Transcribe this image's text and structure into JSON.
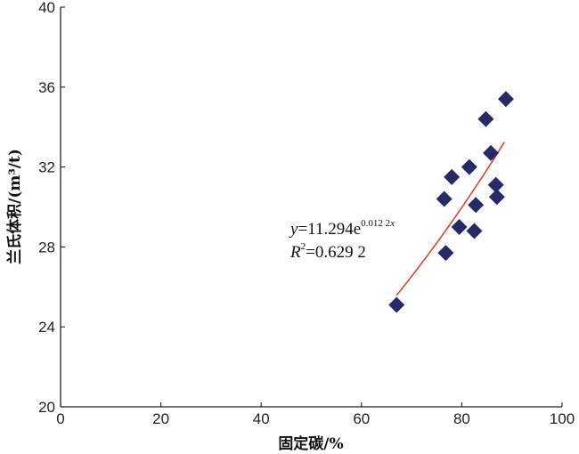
{
  "chart_data": {
    "type": "scatter",
    "xlabel": "固定碳/%",
    "ylabel": "兰氏体积/(m³/t)",
    "xlim": [
      0,
      100
    ],
    "ylim": [
      20,
      40
    ],
    "xticks": [
      0,
      20,
      40,
      60,
      80,
      100
    ],
    "yticks": [
      20,
      24,
      28,
      32,
      36,
      40
    ],
    "grid": false,
    "marker": "diamond",
    "marker_color": "#262a66",
    "points": [
      {
        "x": 67.0,
        "y": 25.1
      },
      {
        "x": 76.5,
        "y": 30.4
      },
      {
        "x": 76.8,
        "y": 27.7
      },
      {
        "x": 78.0,
        "y": 31.5
      },
      {
        "x": 79.5,
        "y": 29.0
      },
      {
        "x": 81.5,
        "y": 32.0
      },
      {
        "x": 82.5,
        "y": 28.8
      },
      {
        "x": 82.8,
        "y": 30.1
      },
      {
        "x": 84.8,
        "y": 34.4
      },
      {
        "x": 85.8,
        "y": 32.7
      },
      {
        "x": 86.8,
        "y": 31.1
      },
      {
        "x": 87.0,
        "y": 30.5
      },
      {
        "x": 88.8,
        "y": 35.4
      }
    ],
    "fit": {
      "type": "exponential",
      "a": 11.294,
      "b": 0.0122,
      "x_range": [
        67,
        88.5
      ],
      "color": "#e0442a",
      "equation": {
        "y_var": "y",
        "equals_base": "=11.294e",
        "exponent": "0.012 2",
        "exponent_var": "x",
        "r2_var": "R",
        "r2_power": "2",
        "r2_value": "=0.629 2"
      }
    }
  }
}
